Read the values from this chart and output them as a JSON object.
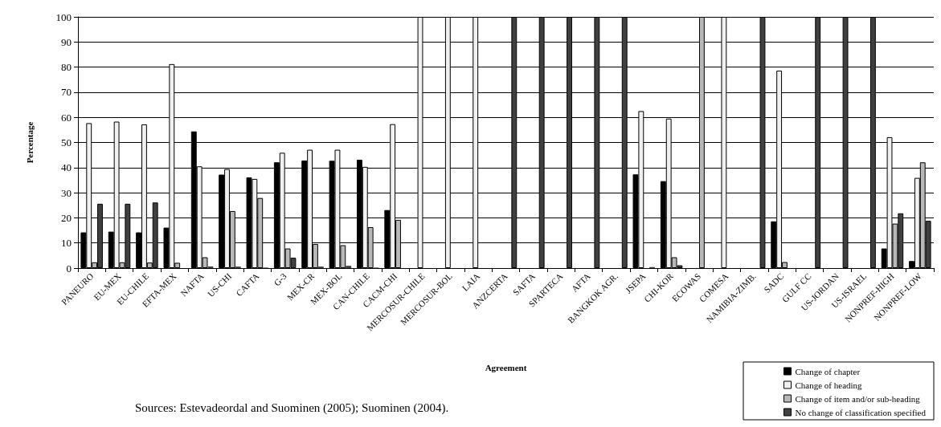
{
  "chart_data": {
    "type": "bar",
    "xlabel": "Agreement",
    "ylabel": "Percentage",
    "categories": [
      "PANEURO",
      "EU-MEX",
      "EU-CHILE",
      "EFTA-MEX",
      "NAFTA",
      "US-CHI",
      "CAFTA",
      "G-3",
      "MEX-CR",
      "MEX-BOL",
      "CAN-CHILE",
      "CACM-CHI",
      "MERCOSUR-CHILE",
      "MERCOSUR-BOL",
      "LAIA",
      "ANZCERTA",
      "SAFTA",
      "SPARTECA",
      "AFTA",
      "BANGKOK AGR.",
      "JSEPA",
      "CHI-KOR",
      "ECOWAS",
      "COMESA",
      "NAMIBIA-ZIMB.",
      "SADC",
      "GULF CC",
      "US-JORDAN",
      "US-ISRAEL",
      "NONPREF-HIGH",
      "NONPREF-LOW"
    ],
    "series": [
      {
        "name": "Change of chapter",
        "color": "#000000",
        "values": [
          14.2,
          14.5,
          14.2,
          16.1,
          54.4,
          37.2,
          36.1,
          42.1,
          42.8,
          42.7,
          43.1,
          23.1,
          0,
          0,
          0,
          0,
          0,
          0,
          0,
          0,
          37.3,
          34.6,
          0,
          0,
          0,
          18.6,
          0,
          0,
          0,
          7.8,
          2.8
        ]
      },
      {
        "name": "Change of heading",
        "color": "#f0f0f0",
        "values": [
          57.7,
          58.3,
          57.2,
          81.2,
          40.5,
          39.4,
          35.5,
          45.9,
          47.1,
          47.1,
          40.3,
          57.3,
          100,
          100,
          100,
          0,
          0,
          0,
          0,
          0,
          62.5,
          59.5,
          0,
          100,
          0,
          78.6,
          0,
          0,
          0,
          52.1,
          35.9
        ]
      },
      {
        "name": "Change of item and/or sub-heading",
        "color": "#b8b8b8",
        "values": [
          2.3,
          2.3,
          2.2,
          2.1,
          4.3,
          22.7,
          27.9,
          7.8,
          9.6,
          9.1,
          16.3,
          19.2,
          0,
          0,
          0,
          0,
          0,
          0,
          0,
          0,
          null,
          4.3,
          100,
          0,
          0,
          2.4,
          0,
          0,
          0,
          17.7,
          42.1
        ]
      },
      {
        "name": "No change of classification specified",
        "color": "#404040",
        "values": [
          25.6,
          25.6,
          26.1,
          0,
          0.6,
          0.6,
          0.2,
          4.1,
          0.6,
          0.9,
          0.2,
          0,
          0,
          0,
          0,
          100,
          100,
          100,
          100,
          100,
          0.4,
          1.1,
          0,
          0,
          100,
          0,
          100,
          100,
          100,
          21.8,
          18.8
        ]
      }
    ],
    "ylim": [
      0,
      100
    ],
    "yticks": [
      0,
      10,
      20,
      30,
      40,
      50,
      60,
      70,
      80,
      90,
      100
    ],
    "grid": "y",
    "legend": "bottom right",
    "annotations": [
      "Sources: Estevadeordal and Suominen (2005); Suominen (2004)."
    ]
  }
}
